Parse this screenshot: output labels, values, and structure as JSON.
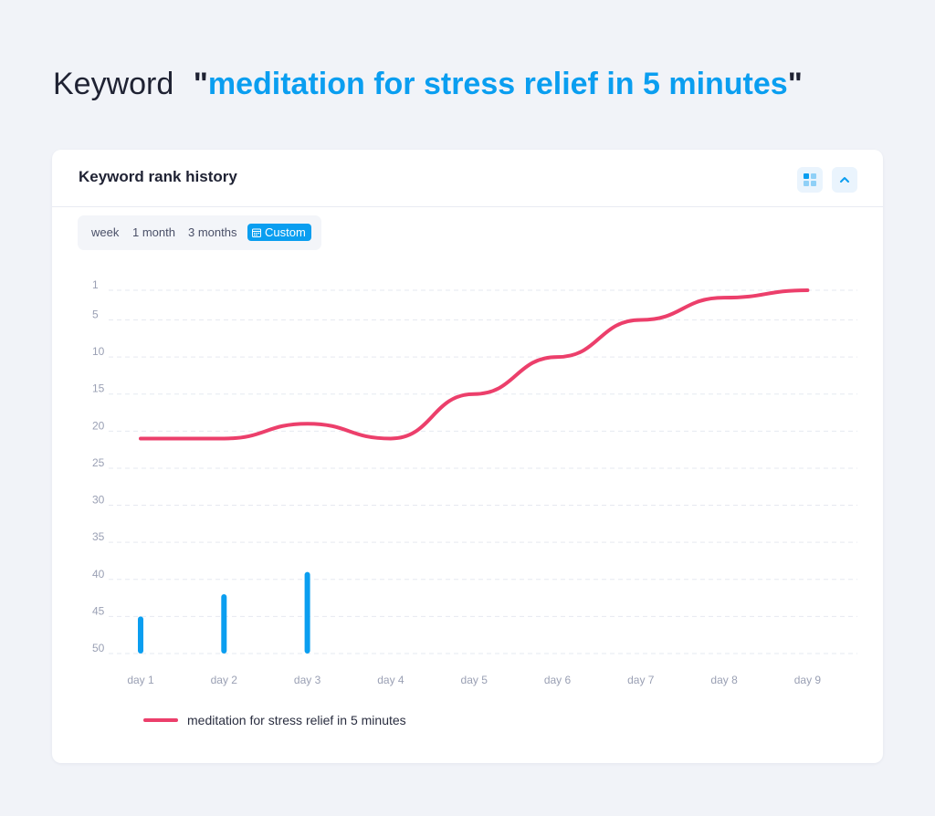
{
  "heading": {
    "label": "Keyword",
    "quote_open": "\"",
    "keyword": "meditation for stress relief in 5 minutes",
    "quote_close": "\""
  },
  "card": {
    "title": "Keyword rank history",
    "filters": {
      "options": [
        "week",
        "1 month",
        "3 months"
      ],
      "custom_label": "Custom",
      "selected": "Custom"
    }
  },
  "colors": {
    "accent": "#0a9ef0",
    "line": "#ec3f6b",
    "bar": "#0a9ef0"
  },
  "chart_data": {
    "type": "line",
    "categories": [
      "day 1",
      "day 2",
      "day 3",
      "day 4",
      "day 5",
      "day 6",
      "day 7",
      "day 8",
      "day 9"
    ],
    "y_ticks": [
      "1",
      "5",
      "10",
      "15",
      "20",
      "25",
      "30",
      "35",
      "40",
      "45",
      "50"
    ],
    "y_inverted": true,
    "ylim": [
      1,
      50
    ],
    "grid": true,
    "series": [
      {
        "name": "meditation for stress relief in 5 minutes",
        "type": "line",
        "values": [
          21,
          21,
          19,
          21,
          15,
          10,
          5,
          2,
          1
        ]
      },
      {
        "type": "bar",
        "values": [
          45,
          42,
          39,
          null,
          null,
          null,
          null,
          null,
          null
        ]
      }
    ],
    "legend": {
      "label": "meditation for stress relief in 5 minutes",
      "position": "bottom-left"
    }
  }
}
